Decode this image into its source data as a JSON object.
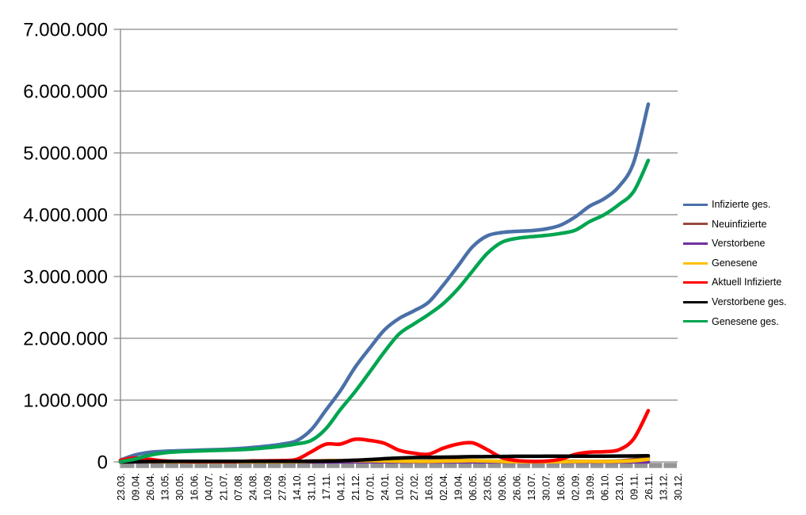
{
  "chart_data": {
    "type": "line",
    "title": "",
    "xlabel": "",
    "ylabel": "",
    "grid": true,
    "legend_position": "right",
    "x_tick_rotation": 90,
    "y_axis": {
      "min": 0,
      "max": 7000000,
      "step": 1000000,
      "labels": [
        "0",
        "1.000.000",
        "2.000.000",
        "3.000.000",
        "4.000.000",
        "5.000.000",
        "6.000.000",
        "7.000.000"
      ]
    },
    "categories": [
      "23.03.",
      "09.04.",
      "26.04.",
      "13.05.",
      "30.05.",
      "16.06.",
      "04.07.",
      "21.07.",
      "07.08.",
      "24.08.",
      "10.09.",
      "27.09.",
      "14.10.",
      "31.10.",
      "17.11.",
      "04.12.",
      "21.12.",
      "07.01.",
      "24.01.",
      "10.02.",
      "27.02.",
      "16.03.",
      "02.04.",
      "19.04.",
      "06.05.",
      "23.05.",
      "09.06.",
      "26.06.",
      "13.07.",
      "30.07.",
      "16.08.",
      "02.09.",
      "19.09.",
      "06.10.",
      "23.10.",
      "09.11.",
      "26.11.",
      "13.12.",
      "30.12."
    ],
    "series": [
      {
        "name": "Infizierte ges.",
        "color": "#4b70a8",
        "values": [
          29000,
          113000,
          156000,
          172000,
          181000,
          187000,
          196000,
          203000,
          214000,
          233000,
          256000,
          287000,
          341000,
          518000,
          833000,
          1153000,
          1530000,
          1841000,
          2134000,
          2321000,
          2442000,
          2581000,
          2856000,
          3164000,
          3478000,
          3657000,
          3712000,
          3731000,
          3742000,
          3769000,
          3830000,
          3961000,
          4138000,
          4260000,
          4456000,
          4844000,
          5790000,
          null,
          null
        ]
      },
      {
        "name": "Neuinfizierte",
        "color": "#9a4a40",
        "values": [
          4000,
          5000,
          2000,
          900,
          500,
          350,
          400,
          500,
          1000,
          1500,
          1700,
          2300,
          5000,
          15000,
          21000,
          22000,
          25000,
          20000,
          14000,
          8000,
          8000,
          13000,
          20000,
          25000,
          19000,
          8000,
          3000,
          1000,
          900,
          2500,
          6000,
          11000,
          8500,
          8500,
          15000,
          38000,
          66000,
          null,
          null
        ]
      },
      {
        "name": "Verstorbene",
        "color": "#7030a0",
        "values": [
          60,
          250,
          180,
          90,
          40,
          15,
          8,
          5,
          6,
          5,
          5,
          10,
          25,
          80,
          200,
          400,
          700,
          850,
          800,
          550,
          350,
          220,
          180,
          250,
          260,
          180,
          100,
          70,
          30,
          20,
          15,
          40,
          60,
          70,
          90,
          180,
          300,
          null,
          null
        ]
      },
      {
        "name": "Genesene",
        "color": "#ffc000",
        "values": [
          2000,
          4500,
          3200,
          1800,
          900,
          500,
          400,
          450,
          700,
          1000,
          1300,
          1700,
          3200,
          8000,
          16000,
          20000,
          22000,
          21000,
          17000,
          12000,
          8500,
          7500,
          13000,
          17000,
          20000,
          16000,
          7500,
          2500,
          1200,
          1100,
          3000,
          6500,
          8000,
          7000,
          9000,
          19000,
          43000,
          null,
          null
        ]
      },
      {
        "name": "Aktuell Infizierte",
        "color": "#ff0000",
        "values": [
          26000,
          65000,
          41000,
          16000,
          8000,
          4000,
          5000,
          5000,
          7000,
          15000,
          18000,
          22000,
          40000,
          161000,
          286000,
          288000,
          367000,
          348000,
          301000,
          189000,
          142000,
          124000,
          220000,
          288000,
          309000,
          200000,
          70000,
          23000,
          10000,
          13000,
          42000,
          120000,
          157000,
          165000,
          196000,
          372000,
          830000,
          null,
          null
        ]
      },
      {
        "name": "Verstorbene ges.",
        "color": "#000000",
        "values": [
          200,
          2300,
          5900,
          7700,
          8500,
          8800,
          9000,
          9100,
          9200,
          9300,
          9400,
          9500,
          9700,
          10500,
          13000,
          18000,
          27000,
          38000,
          52000,
          63000,
          70000,
          74000,
          77000,
          81000,
          84000,
          87000,
          89000,
          90700,
          91300,
          91700,
          92100,
          92500,
          93000,
          94000,
          95400,
          96600,
          100500,
          null,
          null
        ]
      },
      {
        "name": "Genesene ges.",
        "color": "#00a550",
        "values": [
          3000,
          46000,
          109000,
          148000,
          165000,
          174000,
          182000,
          189000,
          198000,
          209000,
          229000,
          255000,
          291000,
          346000,
          534000,
          847000,
          1136000,
          1455000,
          1781000,
          2069000,
          2230000,
          2383000,
          2559000,
          2795000,
          3085000,
          3370000,
          3553000,
          3617000,
          3644000,
          3665000,
          3696000,
          3748000,
          3888000,
          4001000,
          4165000,
          4375000,
          4880000,
          null,
          null
        ]
      }
    ],
    "style": {
      "gridline_color": "#878787",
      "axis_color": "#878787",
      "tick_band_color": "#959595",
      "line_width": 4.5
    }
  }
}
